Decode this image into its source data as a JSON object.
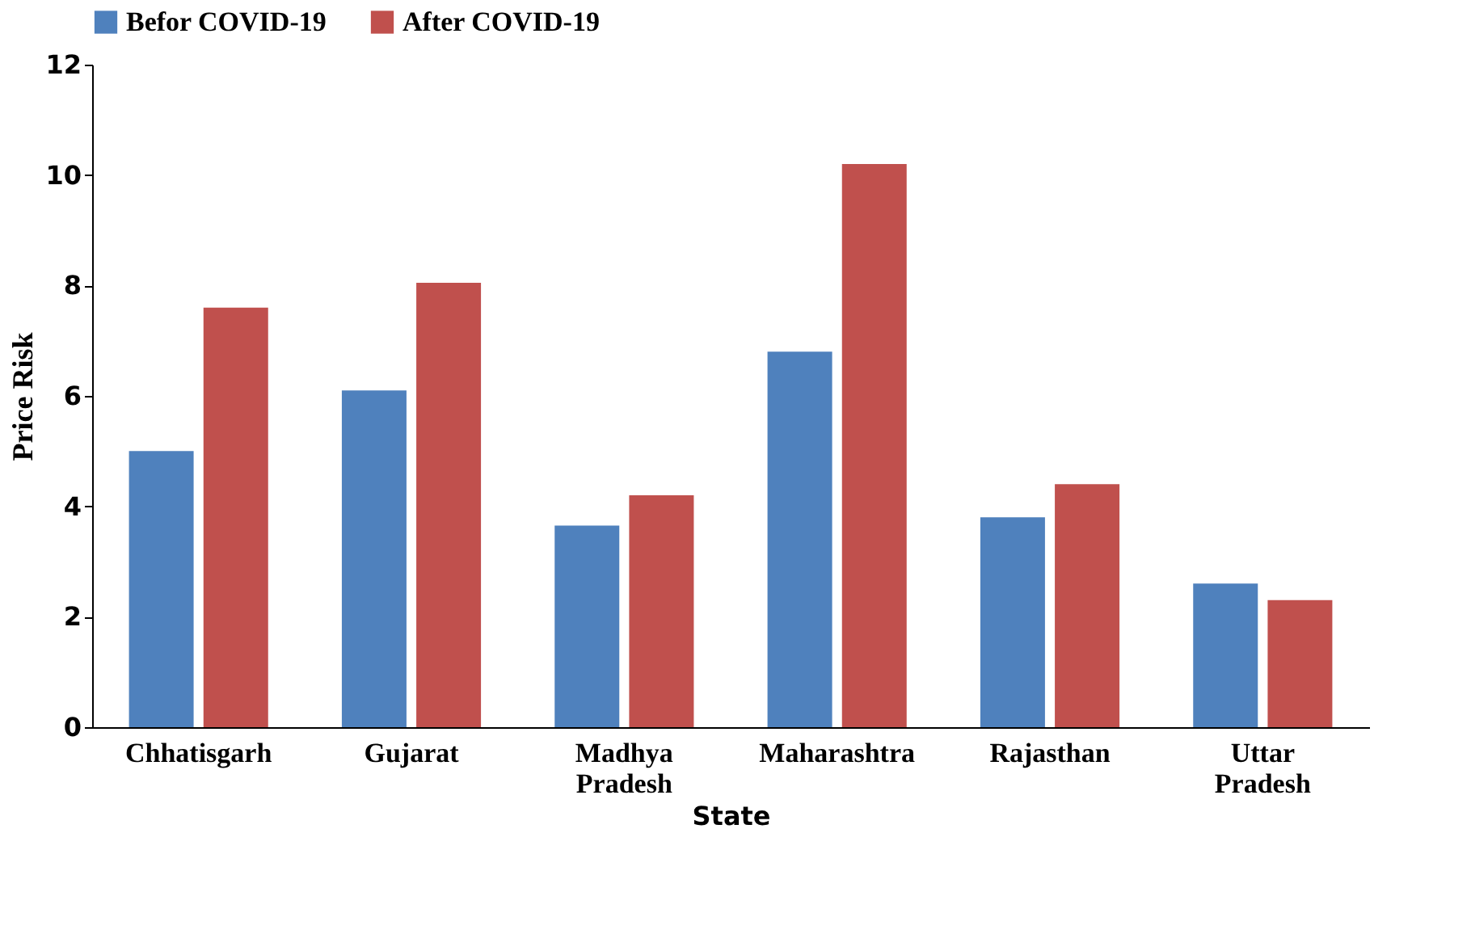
{
  "chart_data": {
    "type": "bar",
    "xlabel": "State",
    "ylabel": "Price Risk",
    "categories": [
      "Chhatisgarh",
      "Gujarat",
      "Madhya Pradesh",
      "Maharashtra",
      "Rajasthan",
      "Uttar Pradesh"
    ],
    "series": [
      {
        "name": "Befor COVID-19",
        "color": "#4f81bd",
        "values": [
          5.0,
          6.1,
          3.65,
          6.8,
          3.8,
          2.6
        ]
      },
      {
        "name": "After COVID-19",
        "color": "#c0504d",
        "values": [
          7.6,
          8.05,
          4.2,
          10.2,
          4.4,
          2.3
        ]
      }
    ],
    "ylim": [
      0,
      12
    ],
    "yticks": [
      0,
      2,
      4,
      6,
      8,
      10,
      12
    ],
    "grid": false,
    "legend": "top"
  }
}
